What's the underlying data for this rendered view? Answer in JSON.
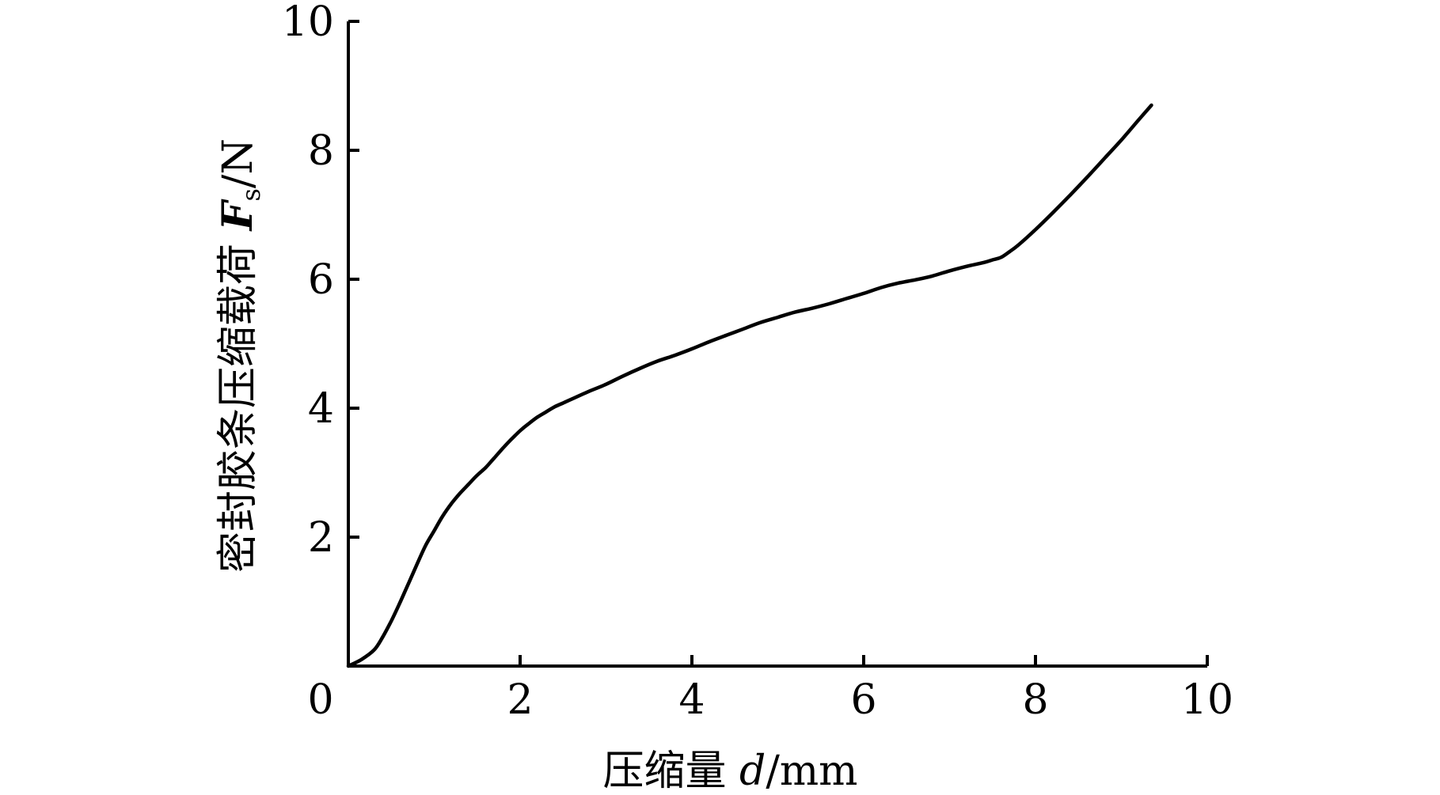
{
  "chart_data": {
    "type": "line",
    "title": "",
    "xlabel": "压缩量 d/mm",
    "ylabel": "密封胶条压缩载荷 Fs/N",
    "xlabel_parts": {
      "prefix": "压缩量 ",
      "var": "d",
      "unit": "/mm"
    },
    "ylabel_parts": {
      "prefix": "密封胶条压缩载荷 ",
      "var": "F",
      "sub": "s",
      "unit": "/N"
    },
    "xlim": [
      0,
      10
    ],
    "ylim": [
      0,
      10
    ],
    "x_ticks": [
      0,
      2,
      4,
      6,
      8,
      10
    ],
    "y_ticks": [
      2,
      4,
      6,
      8,
      10
    ],
    "x_tick_labels": [
      "0",
      "2",
      "4",
      "6",
      "8",
      "10"
    ],
    "y_tick_labels": [
      "2",
      "4",
      "6",
      "8",
      "10"
    ],
    "grid": false,
    "series": [
      {
        "color": "#000000",
        "x": [
          0.0,
          0.15,
          0.3,
          0.4,
          0.5,
          0.6,
          0.7,
          0.8,
          0.9,
          1.0,
          1.1,
          1.2,
          1.3,
          1.4,
          1.5,
          1.6,
          1.7,
          1.8,
          1.9,
          2.0,
          2.1,
          2.2,
          2.3,
          2.4,
          2.5,
          2.6,
          2.8,
          3.0,
          3.2,
          3.4,
          3.6,
          3.8,
          4.0,
          4.2,
          4.4,
          4.6,
          4.8,
          5.0,
          5.2,
          5.4,
          5.6,
          5.8,
          6.0,
          6.2,
          6.4,
          6.6,
          6.8,
          7.0,
          7.2,
          7.4,
          7.5,
          7.6,
          7.7,
          7.8,
          8.0,
          8.2,
          8.4,
          8.6,
          8.8,
          9.0,
          9.2,
          9.35
        ],
        "y": [
          0.0,
          0.1,
          0.25,
          0.45,
          0.7,
          0.98,
          1.28,
          1.58,
          1.87,
          2.1,
          2.33,
          2.52,
          2.68,
          2.82,
          2.96,
          3.08,
          3.23,
          3.38,
          3.52,
          3.65,
          3.76,
          3.86,
          3.94,
          4.02,
          4.08,
          4.14,
          4.26,
          4.37,
          4.5,
          4.62,
          4.73,
          4.82,
          4.92,
          5.03,
          5.13,
          5.23,
          5.33,
          5.41,
          5.49,
          5.55,
          5.62,
          5.7,
          5.78,
          5.87,
          5.94,
          5.99,
          6.05,
          6.13,
          6.2,
          6.26,
          6.3,
          6.34,
          6.43,
          6.53,
          6.77,
          7.03,
          7.3,
          7.58,
          7.87,
          8.16,
          8.47,
          8.7
        ]
      }
    ]
  }
}
